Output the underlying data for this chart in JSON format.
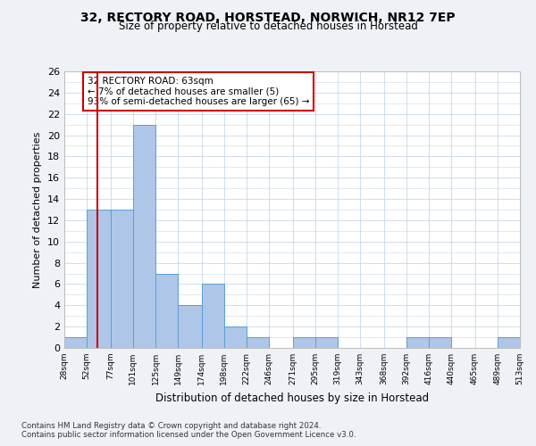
{
  "title_line1": "32, RECTORY ROAD, HORSTEAD, NORWICH, NR12 7EP",
  "title_line2": "Size of property relative to detached houses in Horstead",
  "xlabel": "Distribution of detached houses by size in Horstead",
  "ylabel": "Number of detached properties",
  "bin_edges": [
    28,
    52,
    77,
    101,
    125,
    149,
    174,
    198,
    222,
    246,
    271,
    295,
    319,
    343,
    368,
    392,
    416,
    440,
    465,
    489,
    513
  ],
  "bar_heights": [
    1,
    13,
    13,
    21,
    7,
    4,
    6,
    2,
    1,
    0,
    1,
    1,
    0,
    0,
    0,
    1,
    1,
    0,
    0,
    1
  ],
  "bar_color": "#aec6e8",
  "bar_edge_color": "#5a9fd4",
  "property_size": 63,
  "red_line_color": "#cc0000",
  "annotation_line1": "32 RECTORY ROAD: 63sqm",
  "annotation_line2": "← 7% of detached houses are smaller (5)",
  "annotation_line3": "93% of semi-detached houses are larger (65) →",
  "annotation_box_color": "#ffffff",
  "annotation_box_edge": "#cc0000",
  "ylim_max": 26,
  "ytick_step": 2,
  "footnote1": "Contains HM Land Registry data © Crown copyright and database right 2024.",
  "footnote2": "Contains public sector information licensed under the Open Government Licence v3.0.",
  "bg_color": "#eef2f7",
  "plot_bg_color": "#ffffff",
  "grid_color": "#c8d8e8"
}
